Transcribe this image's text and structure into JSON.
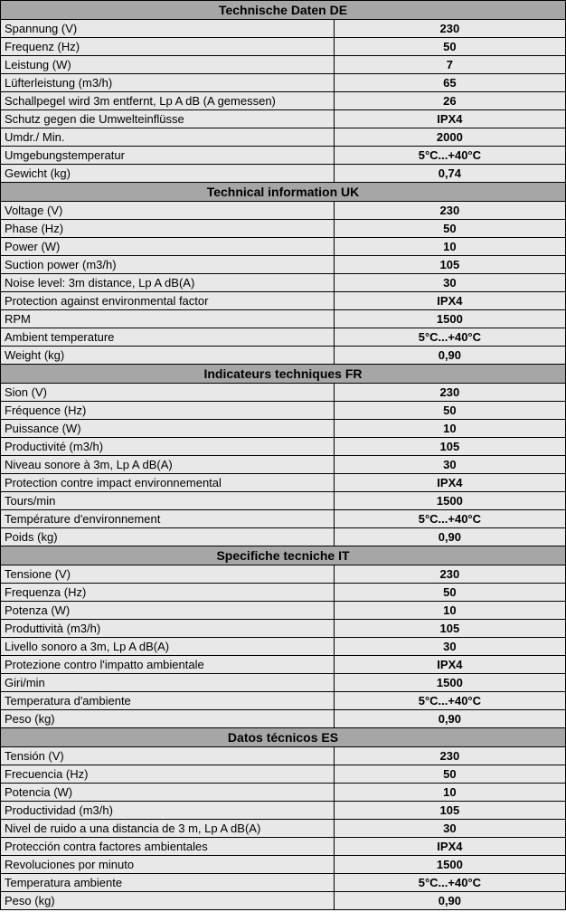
{
  "styles": {
    "header_bg": "#a6a6a6",
    "row_bg": "#e8e8e8",
    "border_color": "#000000",
    "label_col_width_pct": 59,
    "value_col_width_pct": 41,
    "header_fontsize": 14,
    "body_fontsize": 13
  },
  "sections": [
    {
      "title": "Technische Daten DE",
      "rows": [
        {
          "label": "Spannung (V)",
          "value": "230"
        },
        {
          "label": "Frequenz (Hz)",
          "value": "50"
        },
        {
          "label": "Leistung (W)",
          "value": "7"
        },
        {
          "label": "Lüfterleistung (m3/h)",
          "value": "65"
        },
        {
          "label": "Schallpegel wird 3m entfernt, Lp A dB (A gemessen)",
          "value": "26"
        },
        {
          "label": "Schutz gegen die Umwelteinflüsse",
          "value": "IPX4"
        },
        {
          "label": "Umdr./ Min.",
          "value": "2000"
        },
        {
          "label": "Umgebungstemperatur",
          "value": "5°C...+40°C"
        },
        {
          "label": "Gewicht (kg)",
          "value": "0,74"
        }
      ]
    },
    {
      "title": "Technical information UK",
      "rows": [
        {
          "label": "Voltage (V)",
          "value": "230"
        },
        {
          "label": "Phase (Hz)",
          "value": "50"
        },
        {
          "label": "Power (W)",
          "value": "10"
        },
        {
          "label": "Suction power (m3/h)",
          "value": "105"
        },
        {
          "label": "Noise level: 3m distance, Lp A dB(A)",
          "value": "30"
        },
        {
          "label": "Protection against environmental factor",
          "value": "IPX4"
        },
        {
          "label": "RPM",
          "value": "1500"
        },
        {
          "label": "Ambient temperature",
          "value": "5°C...+40°C"
        },
        {
          "label": "Weight (kg)",
          "value": "0,90"
        }
      ]
    },
    {
      "title": "Indicateurs techniques FR",
      "rows": [
        {
          "label": "Sion (V)",
          "value": "230"
        },
        {
          "label": "Fréquence (Hz)",
          "value": "50"
        },
        {
          "label": "Puissance (W)",
          "value": "10"
        },
        {
          "label": "Productivité (m3/h)",
          "value": "105"
        },
        {
          "label": "Niveau sonore à 3m, Lp A dB(A)",
          "value": "30"
        },
        {
          "label": "Protection contre impact environnemental",
          "value": "IPX4"
        },
        {
          "label": "Tours/min",
          "value": "1500"
        },
        {
          "label": "Température d'environnement",
          "value": "5°C...+40°C"
        },
        {
          "label": "Poids (kg)",
          "value": "0,90"
        }
      ]
    },
    {
      "title": "Specifiche tecniche IT",
      "rows": [
        {
          "label": "Tensione (V)",
          "value": "230"
        },
        {
          "label": "Frequenza (Hz)",
          "value": "50"
        },
        {
          "label": "Potenza (W)",
          "value": "10"
        },
        {
          "label": "Produttività (m3/h)",
          "value": "105"
        },
        {
          "label": "Livello sonoro a 3m, Lp A dB(A)",
          "value": "30"
        },
        {
          "label": "Protezione contro l'impatto ambientale",
          "value": "IPX4"
        },
        {
          "label": "Giri/min",
          "value": "1500"
        },
        {
          "label": "Temperatura d'ambiente",
          "value": "5°C...+40°C"
        },
        {
          "label": "Peso (kg)",
          "value": "0,90"
        }
      ]
    },
    {
      "title": "Datos técnicos ES",
      "rows": [
        {
          "label": "Tensión (V)",
          "value": "230"
        },
        {
          "label": "Frecuencia (Hz)",
          "value": "50"
        },
        {
          "label": "Potencia (W)",
          "value": "10"
        },
        {
          "label": "Productividad (m3/h)",
          "value": "105"
        },
        {
          "label": "Nivel de ruido a una distancia de 3 m, Lp A dB(A)",
          "value": "30"
        },
        {
          "label": "Protección contra factores ambientales",
          "value": "IPX4"
        },
        {
          "label": "Revoluciones por minuto",
          "value": "1500"
        },
        {
          "label": "Temperatura ambiente",
          "value": "5°C...+40°C"
        },
        {
          "label": "Peso (kg)",
          "value": "0,90"
        }
      ]
    }
  ]
}
